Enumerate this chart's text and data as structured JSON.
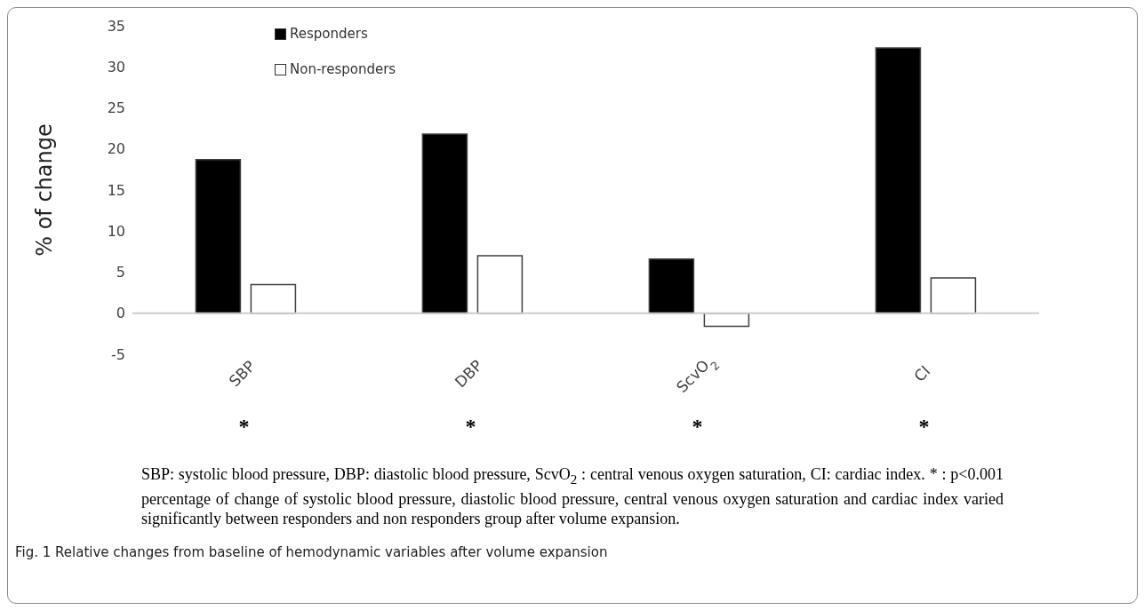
{
  "chart_data": {
    "type": "bar",
    "ylabel": "% of change",
    "categories": [
      "SBP",
      "DBP",
      "ScvO$_{2}$",
      "CI"
    ],
    "series": [
      {
        "name": "Responders",
        "color": "#000000",
        "values": [
          18.7,
          21.8,
          6.6,
          32.3
        ]
      },
      {
        "name": "Non-responders",
        "color": "#ffffff",
        "values": [
          3.5,
          7.0,
          -1.6,
          4.3
        ]
      }
    ],
    "ylim": [
      -5,
      35
    ],
    "yticks": [
      -5,
      0,
      5,
      10,
      15,
      20,
      25,
      30,
      35
    ],
    "legend": "top left",
    "annotations": [
      "*",
      "*",
      "*",
      "*",
      "SBP: systolic blood pressure, DBP: diastolic blood pressure, ScvO$_{2}$ : central venous oxygen saturation, CI: cardiac index. * : p<0.001 percentage of change of systolic blood pressure, diastolic blood pressure, central venous oxygen saturation and cardiac index varied significantly between responders and non responders group after volume expansion.",
      "Fig. 1 Relative changes from baseline of hemodynamic variables after volume expansion"
    ]
  }
}
